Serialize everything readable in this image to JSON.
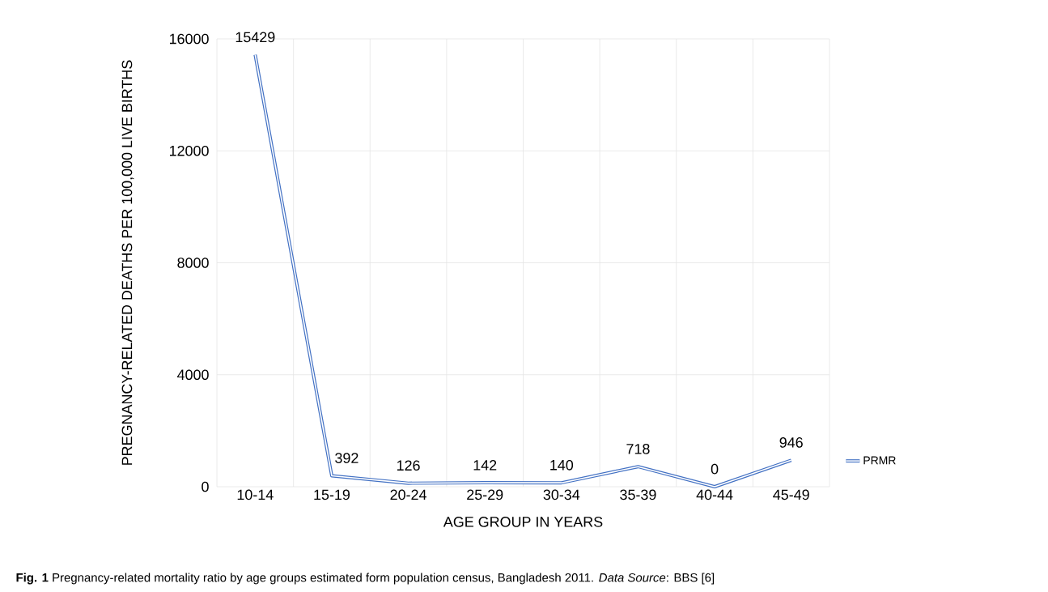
{
  "chart_data": {
    "type": "line",
    "categories": [
      "10-14",
      "15-19",
      "20-24",
      "25-29",
      "30-34",
      "35-39",
      "40-44",
      "45-49"
    ],
    "series": [
      {
        "name": "PRMR",
        "color": "#4472c4",
        "values": [
          15429,
          392,
          126,
          142,
          140,
          718,
          0,
          946
        ]
      }
    ],
    "ylim": [
      0,
      16000
    ],
    "yticks": [
      0,
      4000,
      8000,
      12000,
      16000
    ],
    "grid": true,
    "legend": "right",
    "data_labels": true,
    "xlabel": "AGE GROUP IN YEARS",
    "ylabel": "PREGNANCY-RELATED DEATHS PER 100,000 LIVE BIRTHS",
    "annotations": [
      "**Fig. 1** Pregnancy-related mortality ratio by age groups estimated form population census, Bangladesh 2011. *Data Source*: BBS [6]"
    ]
  }
}
